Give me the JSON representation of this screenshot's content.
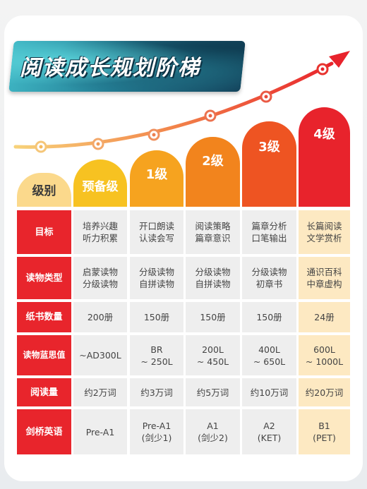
{
  "title": "阅读成长规划阶梯",
  "header": {
    "corner": "级别",
    "levels": [
      "预备级",
      "1级",
      "2级",
      "3级",
      "4级"
    ]
  },
  "colors": {
    "level_fills": [
      "#f7c221",
      "#f6a31f",
      "#f2841d",
      "#ee5422",
      "#e8232c"
    ],
    "row_head": "#e8252c",
    "cell_gray": "#eeeeee",
    "cell_highlight": "#fde9c2",
    "corner": "#fbd98c"
  },
  "rows": [
    {
      "label": "目标",
      "cells": [
        "培养兴趣\n听力积累",
        "开口朗读\n认读会写",
        "阅读策略\n篇章意识",
        "篇章分析\n口笔输出",
        "长篇阅读\n文学赏析"
      ]
    },
    {
      "label": "读物类型",
      "cells": [
        "启蒙读物\n分级读物",
        "分级读物\n自拼读物",
        "分级读物\n自拼读物",
        "分级读物\n初章书",
        "通识百科\n中章虚构"
      ]
    },
    {
      "label": "纸书数量",
      "cells": [
        "200册",
        "150册",
        "150册",
        "150册",
        "24册"
      ]
    },
    {
      "label": "读物蓝思值",
      "cells": [
        "~AD300L",
        "BR\n~ 250L",
        "200L\n~ 450L",
        "400L\n~ 650L",
        "600L\n~ 1000L"
      ]
    },
    {
      "label": "阅读量",
      "cells": [
        "约2万词",
        "约3万词",
        "约5万词",
        "约10万词",
        "约20万词"
      ]
    },
    {
      "label": "剑桥英语",
      "cells": [
        "Pre-A1",
        "Pre-A1\n(剑少1)",
        "A1\n(剑少2)",
        "A2\n(KET)",
        "B1\n(PET)"
      ]
    }
  ]
}
